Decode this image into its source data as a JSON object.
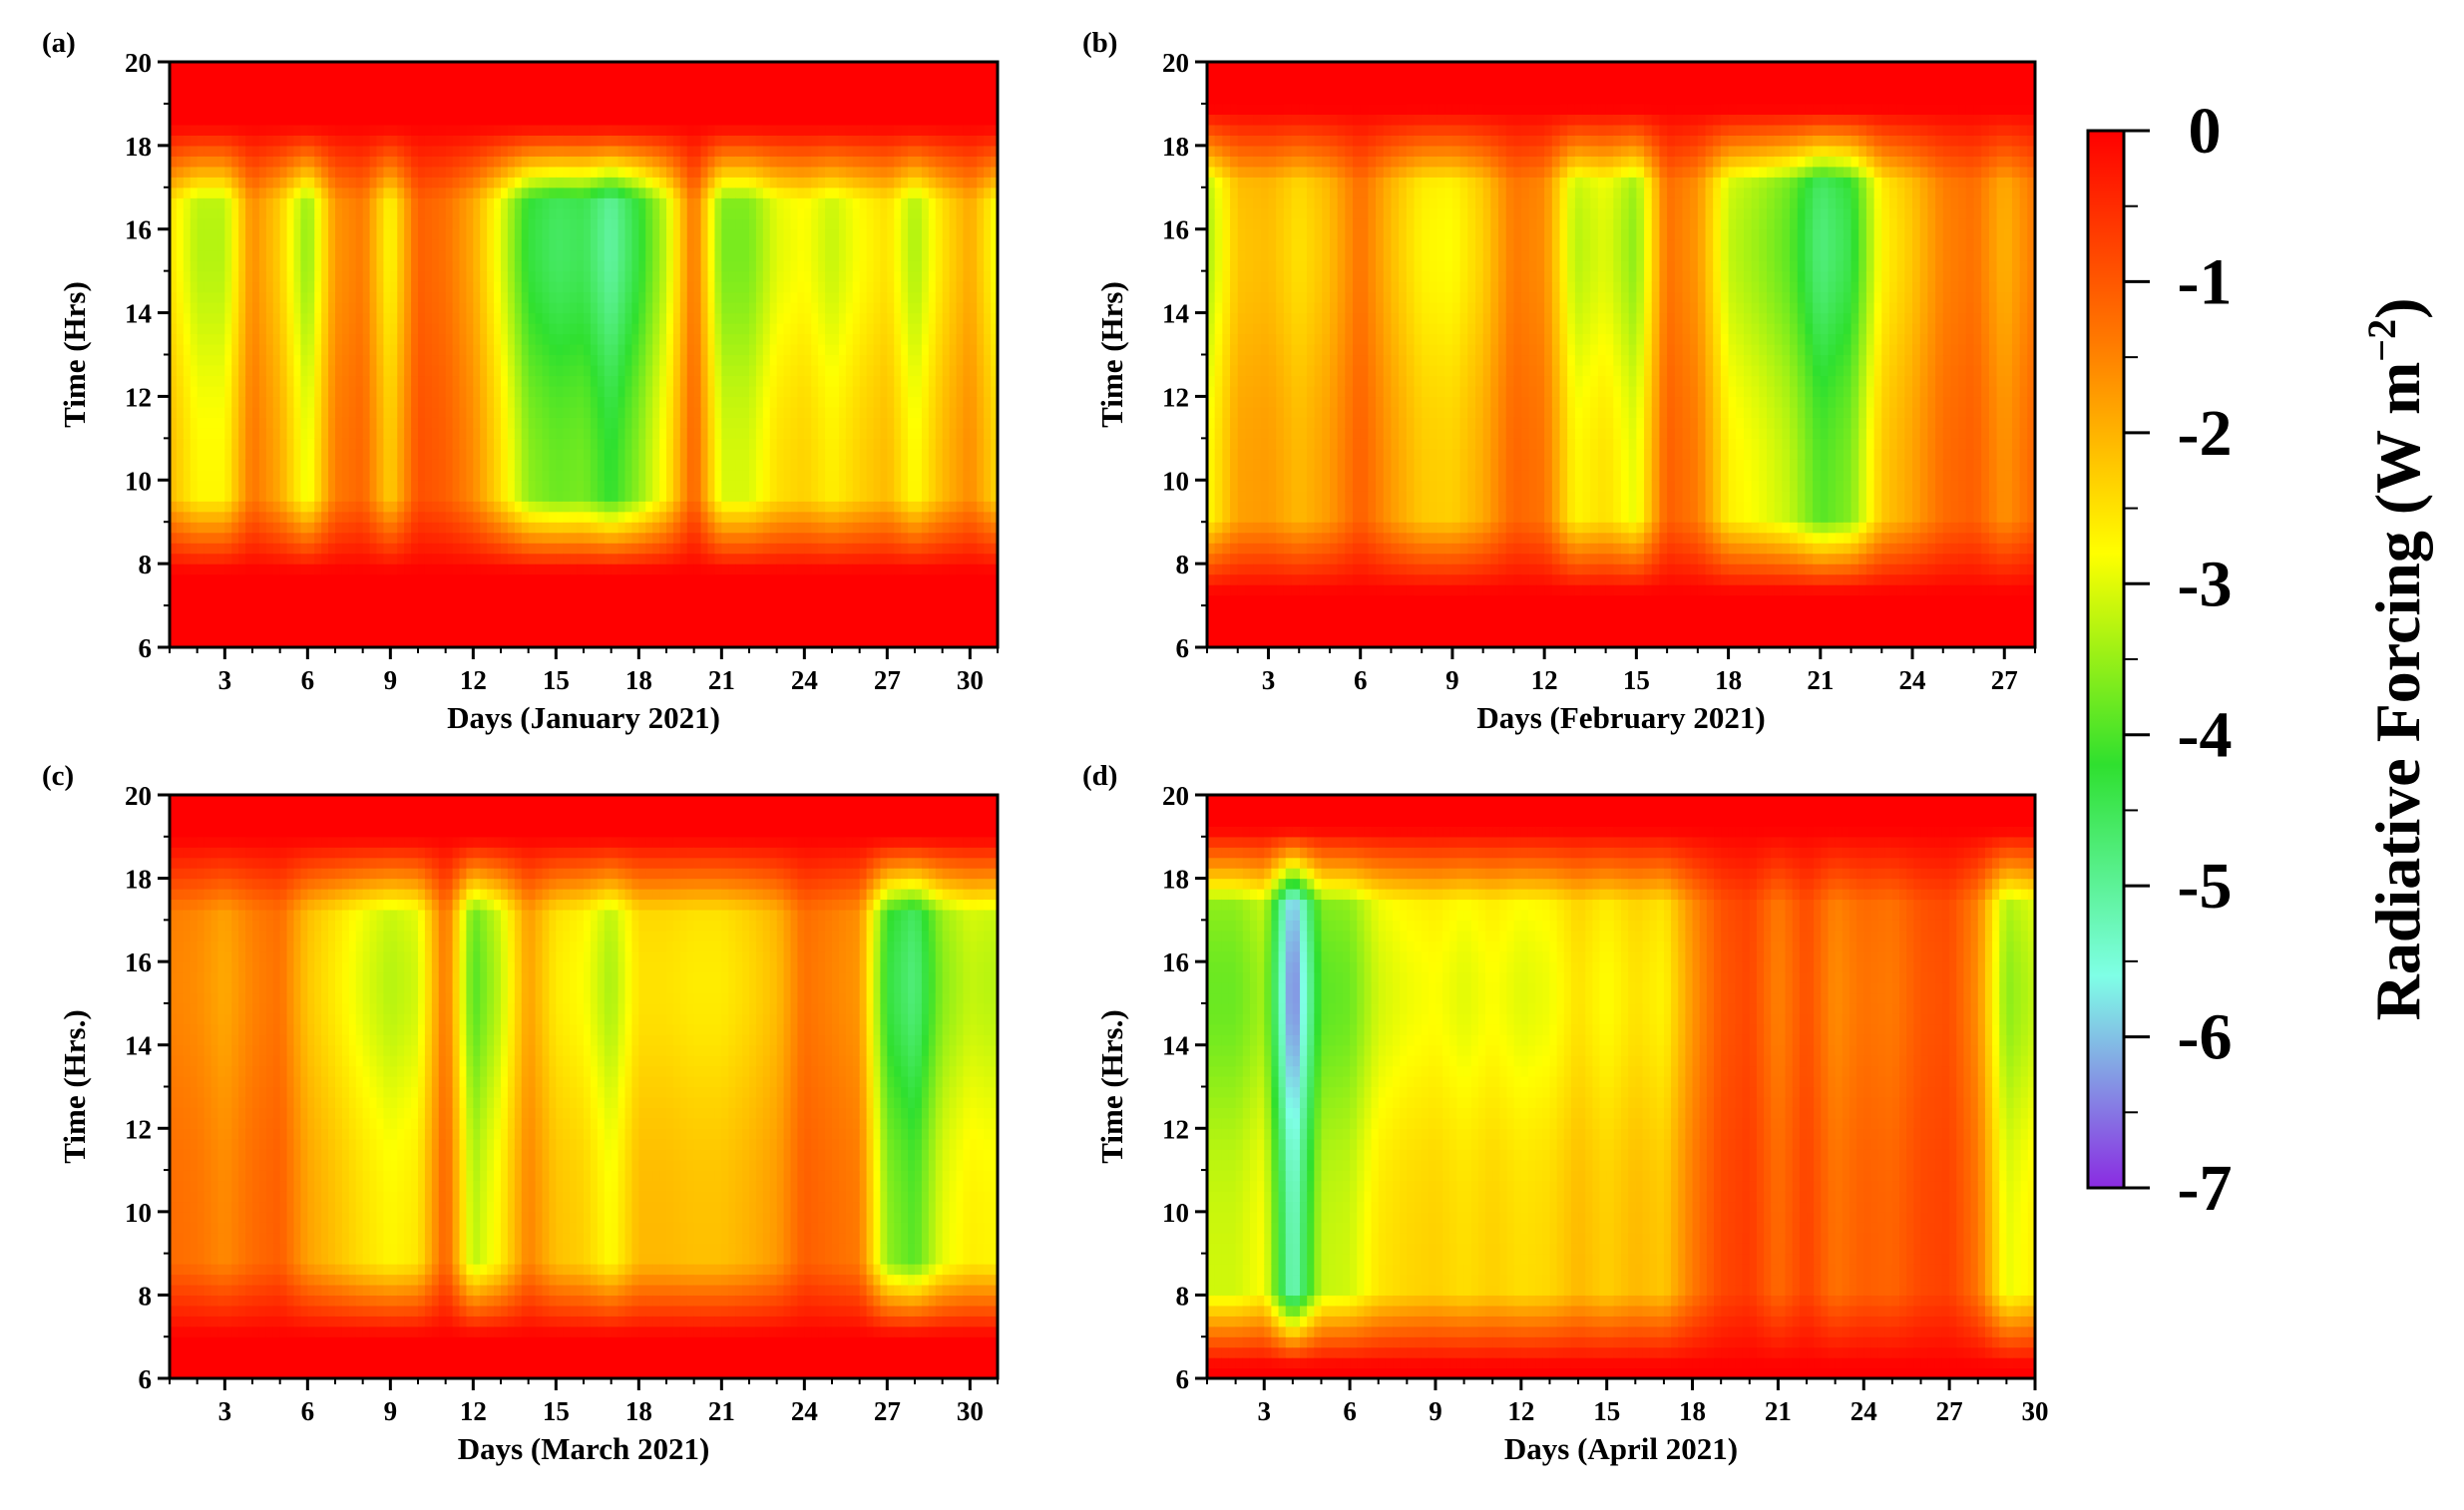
{
  "colorbar": {
    "title": "Radiative Forcing (W m",
    "title_exponent": "−2",
    "title_close": ")",
    "ticks": [
      "0",
      "-1",
      "-2",
      "-3",
      "-4",
      "-5",
      "-6",
      "-7"
    ],
    "range": [
      -7,
      0
    ],
    "colors": [
      "#ff0000",
      "#ff7a00",
      "#ffff00",
      "#2fe02f",
      "#7fffe6",
      "#8a2be2"
    ]
  },
  "chart_data": [
    {
      "type": "heatmap",
      "panel_label": "(a)",
      "xlabel": "Days (January 2021)",
      "ylabel": "Time (Hrs)",
      "xlim": [
        1,
        31
      ],
      "ylim": [
        6,
        20
      ],
      "x_ticks": [
        3,
        6,
        9,
        12,
        15,
        18,
        21,
        24,
        27,
        30
      ],
      "y_ticks": [
        6,
        8,
        10,
        12,
        14,
        16,
        18,
        20
      ],
      "day_peak_forcing": [
        -2.5,
        -3.3,
        -3.3,
        -1.6,
        -2.3,
        -3.6,
        -1.7,
        -1.4,
        -2.8,
        -1.1,
        -1.3,
        -1.9,
        -3.0,
        -4.3,
        -4.6,
        -4.5,
        -5.1,
        -4.3,
        -3.2,
        -1.3,
        -3.7,
        -3.7,
        -3.0,
        -2.8,
        -3.2,
        -2.8,
        -2.5,
        -3.4,
        -2.5,
        -1.9,
        -2.9
      ],
      "daylight_hours": [
        8.7,
        17.6
      ]
    },
    {
      "type": "heatmap",
      "panel_label": "(b)",
      "xlabel": "Days (February 2021)",
      "ylabel": "Time (Hrs)",
      "xlim": [
        1,
        28
      ],
      "ylim": [
        6,
        20
      ],
      "x_ticks": [
        3,
        6,
        9,
        12,
        15,
        18,
        21,
        24,
        27
      ],
      "y_ticks": [
        6,
        8,
        10,
        12,
        14,
        16,
        18,
        20
      ],
      "day_peak_forcing": [
        -3.4,
        -2.2,
        -2.1,
        -2.5,
        -2.1,
        -1.3,
        -2.1,
        -2.7,
        -2.8,
        -2.3,
        -1.4,
        -1.6,
        -3.3,
        -3.0,
        -3.6,
        -1.3,
        -1.7,
        -3.2,
        -3.5,
        -3.9,
        -4.8,
        -4.4,
        -2.7,
        -2.2,
        -1.5,
        -1.3,
        -2.0,
        -1.4
      ],
      "daylight_hours": [
        8.2,
        18.0
      ]
    },
    {
      "type": "heatmap",
      "panel_label": "(c)",
      "xlabel": "Days (March 2021)",
      "ylabel": "Time (Hrs.)",
      "xlim": [
        1,
        31
      ],
      "ylim": [
        6,
        20
      ],
      "x_ticks": [
        3,
        6,
        9,
        12,
        15,
        18,
        21,
        24,
        27,
        30
      ],
      "y_ticks": [
        6,
        8,
        10,
        12,
        14,
        16,
        18,
        20
      ],
      "day_peak_forcing": [
        -1.5,
        -1.6,
        -1.9,
        -1.5,
        -1.3,
        -2.2,
        -2.6,
        -3.0,
        -3.3,
        -3.1,
        -1.3,
        -4.0,
        -3.2,
        -1.8,
        -2.6,
        -2.8,
        -3.4,
        -2.5,
        -2.5,
        -2.6,
        -2.6,
        -2.4,
        -2.1,
        -1.3,
        -1.5,
        -1.7,
        -4.3,
        -4.8,
        -3.6,
        -3.2,
        -3.3
      ],
      "daylight_hours": [
        7.9,
        18.1
      ]
    },
    {
      "type": "heatmap",
      "panel_label": "(d)",
      "xlabel": "Days (April 2021)",
      "ylabel": "Time (Hrs.)",
      "xlim": [
        1,
        30
      ],
      "ylim": [
        6,
        20
      ],
      "x_ticks": [
        3,
        6,
        9,
        12,
        15,
        18,
        21,
        24,
        27,
        30
      ],
      "y_ticks": [
        6,
        8,
        10,
        12,
        14,
        16,
        18,
        20
      ],
      "day_peak_forcing": [
        -3.8,
        -3.8,
        -3.4,
        -6.6,
        -3.9,
        -3.8,
        -3.1,
        -2.9,
        -2.8,
        -3.0,
        -2.8,
        -3.0,
        -2.9,
        -2.5,
        -2.8,
        -2.5,
        -2.7,
        -1.7,
        -1.0,
        -0.8,
        -1.5,
        -0.9,
        -1.6,
        -1.3,
        -1.4,
        -1.0,
        -0.9,
        -1.6,
        -3.6,
        -3.2
      ],
      "daylight_hours": [
        7.2,
        18.3
      ]
    }
  ]
}
